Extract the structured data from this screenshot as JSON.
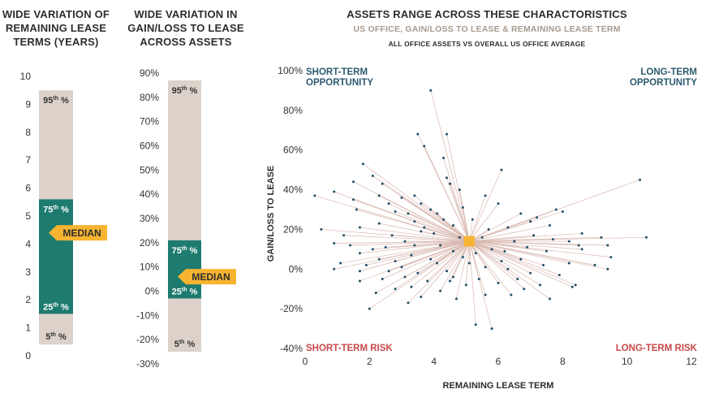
{
  "colors": {
    "bar_bg": "#dcd2ca",
    "iqr": "#1e7b6f",
    "median_arrow": "#f7b431",
    "quad_blue": "#2c5a70",
    "quad_red": "#c9494c",
    "point": "#1f4e66",
    "line": "#d9b8b0",
    "avg_marker": "#f7b431"
  },
  "panel1": {
    "title": "WIDE VARIATION OF REMAINING LEASE TERMS (YEARS)",
    "title_lines": [
      "WIDE VARIATION OF",
      "REMAINING LEASE",
      "TERMS (YEARS)"
    ],
    "ticks": [
      "0",
      "1",
      "2",
      "3",
      "4",
      "5",
      "6",
      "7",
      "8",
      "9",
      "10"
    ],
    "y_range": [
      0,
      10
    ],
    "p5": 0.4,
    "p25": 1.5,
    "median": 4.4,
    "p75": 5.6,
    "p95": 9.5,
    "labels": {
      "p95": "95th %",
      "p75": "75th %",
      "median": "MEDIAN",
      "p25": "25th %",
      "p5": "5th %"
    }
  },
  "panel2": {
    "title": "WIDE VARIATION IN GAIN/LOSS TO LEASE ACROSS ASSETS",
    "title_lines": [
      "WIDE VARIATION IN",
      "GAIN/LOSS TO LEASE",
      "ACROSS ASSETS"
    ],
    "ticks": [
      "-30%",
      "-20%",
      "-10%",
      "0%",
      "10%",
      "20%",
      "30%",
      "40%",
      "50%",
      "60%",
      "70%",
      "80%",
      "90%"
    ],
    "y_range": [
      -30,
      90
    ],
    "p5": -25,
    "p25": -3,
    "median": 6,
    "p75": 21,
    "p95": 87,
    "labels": {
      "p95": "95th %",
      "p75": "75th %",
      "median": "MEDIAN",
      "p25": "25th %",
      "p5": "5th %"
    }
  },
  "panel3": {
    "title": "ASSETS RANGE ACROSS THESE CHARACTORISTICS",
    "subtitle": "US OFFICE, GAIN/LOSS TO LEASE & REMAINING LEASE TERM",
    "subtitle2": "ALL OFFICE ASSETS VS OVERALL US OFFICE AVERAGE",
    "xlabel": "REMAINING LEASE TERM",
    "ylabel": "GAIN/LOSS TO LEASE",
    "x_ticks": [
      "0",
      "2",
      "4",
      "6",
      "8",
      "10",
      "12"
    ],
    "y_ticks": [
      "-40%",
      "-20%",
      "0%",
      "20%",
      "40%",
      "60%",
      "80%",
      "100%"
    ],
    "quadrants": {
      "top_left": [
        "SHORT-TERM",
        "OPPORTUNITY"
      ],
      "top_right": [
        "LONG-TERM",
        "OPPORTUNITY"
      ],
      "bottom_left": "SHORT-TERM RISK",
      "bottom_right": "LONG-TERM RISK"
    }
  },
  "chart_data": [
    {
      "type": "box",
      "title": "WIDE VARIATION OF REMAINING LEASE TERMS (YEARS)",
      "ylim": [
        0,
        10
      ],
      "p5": 0.4,
      "p25": 1.5,
      "median": 4.4,
      "p75": 5.6,
      "p95": 9.5
    },
    {
      "type": "box",
      "title": "WIDE VARIATION IN GAIN/LOSS TO LEASE ACROSS ASSETS",
      "ylim": [
        -30,
        90
      ],
      "p5": -25,
      "p25": -3,
      "median": 6,
      "p75": 21,
      "p95": 87
    },
    {
      "type": "scatter",
      "title": "ASSETS RANGE ACROSS THESE CHARACTORISTICS",
      "subtitle": "US OFFICE, GAIN/LOSS TO LEASE & REMAINING LEASE TERM",
      "xlabel": "REMAINING LEASE TERM",
      "ylabel": "GAIN/LOSS TO LEASE",
      "xlim": [
        0,
        12
      ],
      "ylim": [
        -40,
        100
      ],
      "average": {
        "x": 5.1,
        "y": 14
      },
      "points": [
        [
          3.9,
          90
        ],
        [
          3.5,
          68
        ],
        [
          4.4,
          68
        ],
        [
          3.7,
          62
        ],
        [
          4.3,
          56
        ],
        [
          1.8,
          53
        ],
        [
          6.1,
          50
        ],
        [
          2.1,
          47
        ],
        [
          4.4,
          46
        ],
        [
          1.5,
          44
        ],
        [
          2.4,
          43
        ],
        [
          4.5,
          43
        ],
        [
          0.3,
          37
        ],
        [
          0.9,
          39
        ],
        [
          1.5,
          35
        ],
        [
          2.3,
          37
        ],
        [
          3.0,
          36
        ],
        [
          3.4,
          37
        ],
        [
          5.6,
          37
        ],
        [
          4.8,
          40
        ],
        [
          10.4,
          45
        ],
        [
          2.6,
          33
        ],
        [
          3.6,
          33
        ],
        [
          4.9,
          31
        ],
        [
          6.0,
          33
        ],
        [
          7.8,
          30
        ],
        [
          8.0,
          29
        ],
        [
          1.6,
          30
        ],
        [
          2.8,
          29
        ],
        [
          3.2,
          28
        ],
        [
          3.9,
          30
        ],
        [
          4.1,
          28
        ],
        [
          4.3,
          25
        ],
        [
          5.2,
          25
        ],
        [
          6.7,
          28
        ],
        [
          7.2,
          26
        ],
        [
          7.0,
          24
        ],
        [
          0.5,
          20
        ],
        [
          1.7,
          21
        ],
        [
          2.3,
          23
        ],
        [
          3.4,
          24
        ],
        [
          3.7,
          21
        ],
        [
          4.6,
          22
        ],
        [
          5.7,
          20
        ],
        [
          6.3,
          21
        ],
        [
          7.6,
          22
        ],
        [
          10.6,
          16
        ],
        [
          9.2,
          16
        ],
        [
          8.6,
          18
        ],
        [
          8.2,
          14
        ],
        [
          1.2,
          17
        ],
        [
          2.7,
          17
        ],
        [
          3.1,
          14
        ],
        [
          3.6,
          19
        ],
        [
          4.0,
          18
        ],
        [
          4.8,
          16
        ],
        [
          5.5,
          16
        ],
        [
          6.5,
          14
        ],
        [
          7.1,
          17
        ],
        [
          7.7,
          15
        ],
        [
          8.5,
          12
        ],
        [
          9.4,
          12
        ],
        [
          0.9,
          13
        ],
        [
          1.4,
          12
        ],
        [
          2.1,
          10
        ],
        [
          2.5,
          11
        ],
        [
          3.4,
          12
        ],
        [
          4.2,
          12
        ],
        [
          4.6,
          9
        ],
        [
          5.8,
          10
        ],
        [
          6.2,
          9
        ],
        [
          6.9,
          11
        ],
        [
          7.5,
          9
        ],
        [
          8.6,
          10
        ],
        [
          9.5,
          6
        ],
        [
          1.7,
          8
        ],
        [
          2.3,
          5
        ],
        [
          2.8,
          4
        ],
        [
          3.3,
          7
        ],
        [
          3.9,
          5
        ],
        [
          4.1,
          3
        ],
        [
          4.9,
          6
        ],
        [
          5.3,
          8
        ],
        [
          6.1,
          4
        ],
        [
          6.7,
          5
        ],
        [
          7.4,
          2
        ],
        [
          8.2,
          3
        ],
        [
          9.0,
          2
        ],
        [
          1.1,
          3
        ],
        [
          1.9,
          2
        ],
        [
          2.6,
          -1
        ],
        [
          3.0,
          1
        ],
        [
          3.5,
          -2
        ],
        [
          4.4,
          -1
        ],
        [
          5.1,
          3
        ],
        [
          5.6,
          1
        ],
        [
          6.3,
          0
        ],
        [
          7.0,
          -2
        ],
        [
          7.9,
          -3
        ],
        [
          9.4,
          0
        ],
        [
          0.9,
          0
        ],
        [
          1.7,
          -1
        ],
        [
          2.4,
          -5
        ],
        [
          3.1,
          -4
        ],
        [
          3.8,
          -6
        ],
        [
          4.6,
          -4
        ],
        [
          5.4,
          -5
        ],
        [
          6.0,
          -7
        ],
        [
          6.6,
          -5
        ],
        [
          7.3,
          -8
        ],
        [
          8.4,
          -8
        ],
        [
          1.7,
          -6
        ],
        [
          2.8,
          -10
        ],
        [
          3.3,
          -9
        ],
        [
          4.2,
          -11
        ],
        [
          5.6,
          -13
        ],
        [
          6.4,
          -13
        ],
        [
          7.6,
          -15
        ],
        [
          3.2,
          -17
        ],
        [
          2.0,
          -20
        ],
        [
          5.8,
          -30
        ],
        [
          5.3,
          -28
        ],
        [
          4.7,
          -15
        ],
        [
          2.2,
          -12
        ],
        [
          3.6,
          -14
        ],
        [
          8.3,
          -9
        ],
        [
          6.8,
          -10
        ],
        [
          5.0,
          -8
        ],
        [
          4.5,
          -6
        ]
      ]
    }
  ]
}
